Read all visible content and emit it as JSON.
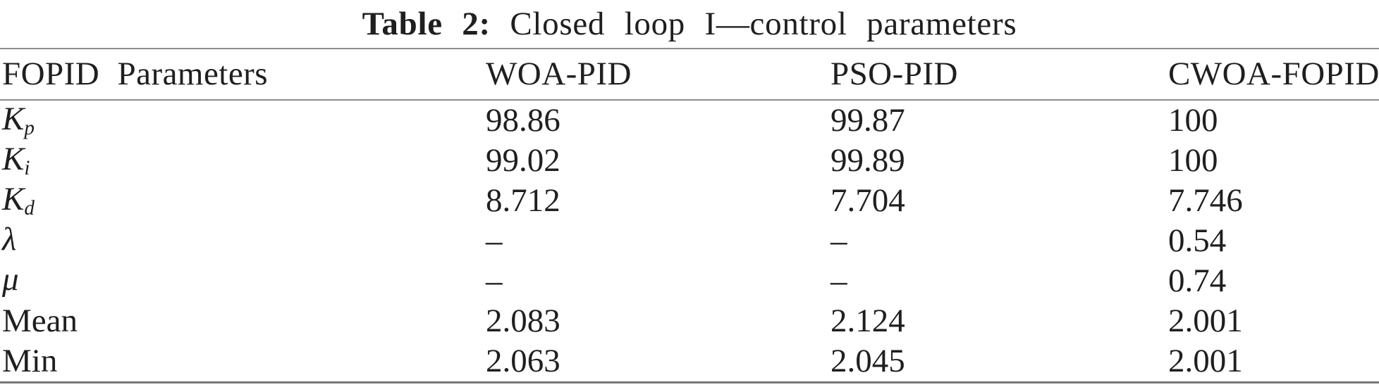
{
  "caption": {
    "label": "Table 2:",
    "text": "Closed loop I—control parameters"
  },
  "table": {
    "columns": [
      "FOPID Parameters",
      "WOA-PID",
      "PSO-PID",
      "CWOA-FOPID"
    ],
    "rows": [
      {
        "symbol": "K",
        "sub": "p",
        "values": [
          "98.86",
          "99.87",
          "100"
        ]
      },
      {
        "symbol": "K",
        "sub": "i",
        "values": [
          "99.02",
          "99.89",
          "100"
        ]
      },
      {
        "symbol": "K",
        "sub": "d",
        "values": [
          "8.712",
          "7.704",
          "7.746"
        ]
      },
      {
        "symbol": "λ",
        "sub": "",
        "values": [
          "–",
          "–",
          "0.54"
        ]
      },
      {
        "symbol": "μ",
        "sub": "",
        "values": [
          "–",
          "–",
          "0.74"
        ]
      },
      {
        "symbol": "Mean",
        "sub": "",
        "values": [
          "2.083",
          "2.124",
          "2.001"
        ]
      },
      {
        "symbol": "Min",
        "sub": "",
        "values": [
          "2.063",
          "2.045",
          "2.001"
        ]
      }
    ]
  },
  "colors": {
    "background": "#ffffff",
    "text": "#1f1f1f",
    "rule": "#8c8c8c"
  }
}
